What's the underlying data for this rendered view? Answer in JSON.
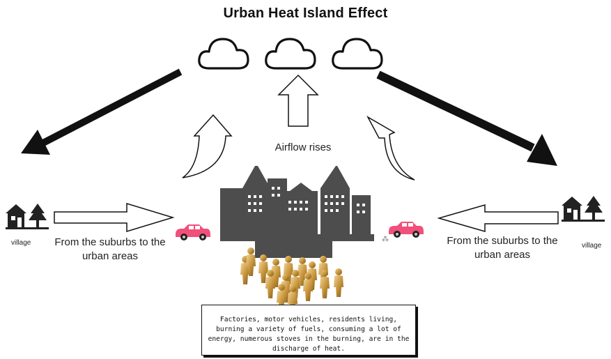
{
  "title": "Urban Heat Island Effect",
  "airflow_label": "Airflow rises",
  "left": {
    "village_label": "village",
    "flow_label": "From the suburbs to the urban areas"
  },
  "right": {
    "village_label": "village",
    "flow_label": "From the suburbs to the urban areas"
  },
  "note": "Factories, motor vehicles, residents living, burning a variety of fuels, consuming a lot of energy, numerous stoves in the burning, are in the discharge of heat.",
  "colors": {
    "building": "#4d4d4d",
    "car": "#f0507a",
    "people": "#c8963c",
    "stroke": "#111111"
  },
  "icons": [
    "cloud-icon",
    "house-icon",
    "tree-icon",
    "car-icon",
    "people-icon",
    "city-icon"
  ]
}
